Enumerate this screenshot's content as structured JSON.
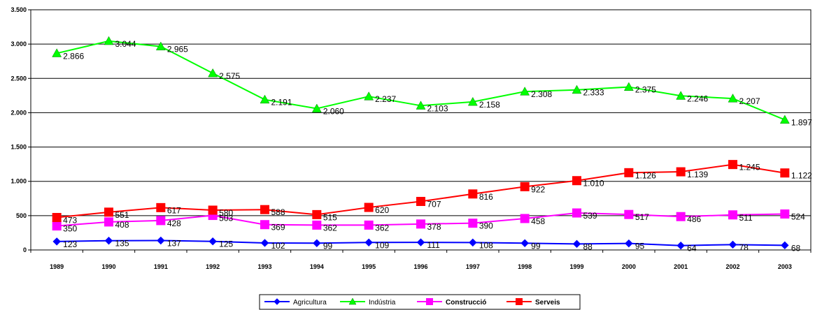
{
  "chart_data": {
    "type": "line",
    "categories": [
      "1989",
      "1990",
      "1991",
      "1992",
      "1993",
      "1994",
      "1995",
      "1996",
      "1997",
      "1998",
      "1999",
      "2000",
      "2001",
      "2002",
      "2003"
    ],
    "ylim": [
      0,
      3500
    ],
    "yticks": [
      0,
      500,
      1000,
      1500,
      2000,
      2500,
      3000,
      3500
    ],
    "ytick_labels": [
      "0",
      "500",
      "1.000",
      "1.500",
      "2.000",
      "2.500",
      "3.000",
      "3.500"
    ],
    "grid": true,
    "legend_position": "bottom",
    "series": [
      {
        "name": "Agricultura",
        "color": "#0000ff",
        "marker": "diamond",
        "bold": false,
        "values": [
          123,
          135,
          137,
          125,
          102,
          99,
          109,
          111,
          108,
          99,
          88,
          95,
          64,
          78,
          68
        ],
        "labels": [
          "123",
          "135",
          "137",
          "125",
          "102",
          "99",
          "109",
          "111",
          "108",
          "99",
          "88",
          "95",
          "64",
          "78",
          "68"
        ]
      },
      {
        "name": "Indústria",
        "color": "#00ff00",
        "marker": "triangle",
        "bold": false,
        "values": [
          2866,
          3044,
          2965,
          2575,
          2191,
          2060,
          2237,
          2103,
          2158,
          2308,
          2333,
          2375,
          2246,
          2207,
          1897
        ],
        "labels": [
          "2.866",
          "3.044",
          "2.965",
          "2.575",
          "2.191",
          "2.060",
          "2.237",
          "2.103",
          "2.158",
          "2.308",
          "2.333",
          "2.375",
          "2.246",
          "2.207",
          "1.897"
        ]
      },
      {
        "name": "Construcció",
        "color": "#ff00ff",
        "marker": "square",
        "bold": true,
        "values": [
          350,
          408,
          428,
          503,
          369,
          362,
          362,
          378,
          390,
          458,
          539,
          517,
          486,
          511,
          524
        ],
        "labels": [
          "350",
          "408",
          "428",
          "503",
          "369",
          "362",
          "362",
          "378",
          "390",
          "458",
          "539",
          "517",
          "486",
          "511",
          "524"
        ]
      },
      {
        "name": "Serveis",
        "color": "#ff0000",
        "marker": "square",
        "bold": true,
        "values": [
          473,
          551,
          617,
          580,
          588,
          515,
          620,
          707,
          816,
          922,
          1010,
          1126,
          1139,
          1245,
          1122
        ],
        "labels": [
          "473",
          "551",
          "617",
          "580",
          "588",
          "515",
          "620",
          "707",
          "816",
          "922",
          "1.010",
          "1.126",
          "1.139",
          "1.245",
          "1.122"
        ]
      }
    ]
  }
}
